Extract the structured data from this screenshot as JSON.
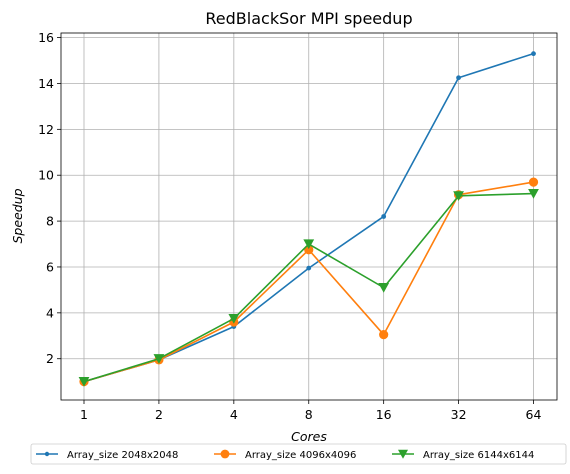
{
  "chart_data": {
    "type": "line",
    "title": "RedBlackSor MPI speedup",
    "xlabel": "Cores",
    "ylabel": "Speedup",
    "categories": [
      "1",
      "2",
      "4",
      "8",
      "16",
      "32",
      "64"
    ],
    "yticks": [
      "2",
      "4",
      "6",
      "8",
      "10",
      "12",
      "14",
      "16"
    ],
    "ylim": [
      0.2,
      16.2
    ],
    "grid": true,
    "legend_position": "bottom",
    "series": [
      {
        "name": "Array_size 2048x2048",
        "values": [
          1.0,
          1.95,
          3.4,
          5.95,
          8.2,
          14.25,
          15.3
        ],
        "color": "#1f77b4",
        "marker": "point"
      },
      {
        "name": "Array_size 4096x4096",
        "values": [
          1.0,
          1.95,
          3.6,
          6.75,
          3.05,
          9.15,
          9.7
        ],
        "color": "#ff7f0e",
        "marker": "circle"
      },
      {
        "name": "Array_size 6144x6144",
        "values": [
          1.0,
          2.0,
          3.75,
          7.0,
          5.1,
          9.1,
          9.2
        ],
        "color": "#2ca02c",
        "marker": "triangle-down"
      }
    ]
  }
}
